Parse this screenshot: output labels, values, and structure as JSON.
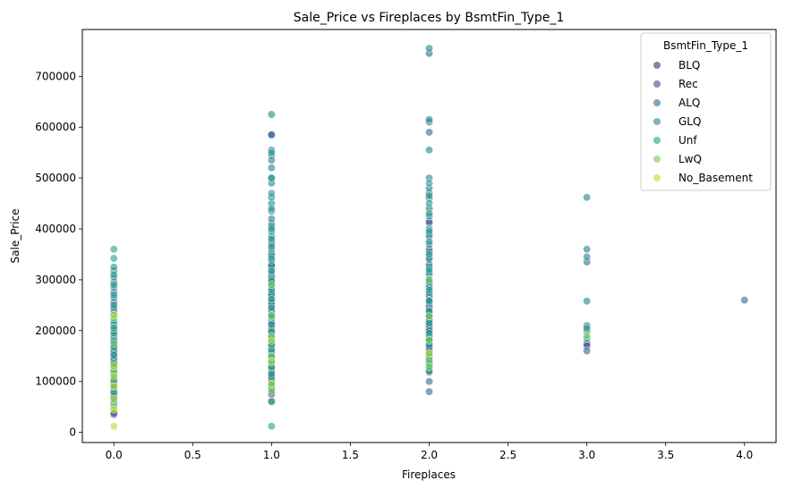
{
  "chart_data": {
    "type": "scatter",
    "title": "Sale_Price vs Fireplaces by BsmtFin_Type_1",
    "xlabel": "Fireplaces",
    "ylabel": "Sale_Price",
    "xlim": [
      -0.2,
      4.2
    ],
    "ylim": [
      -20000,
      792000
    ],
    "x_ticks": [
      0.0,
      0.5,
      1.0,
      1.5,
      2.0,
      2.5,
      3.0,
      3.5,
      4.0
    ],
    "x_tick_labels": [
      "0.0",
      "0.5",
      "1.0",
      "1.5",
      "2.0",
      "2.5",
      "3.0",
      "3.5",
      "4.0"
    ],
    "y_ticks": [
      0,
      100000,
      200000,
      300000,
      400000,
      500000,
      600000,
      700000
    ],
    "y_tick_labels": [
      "0",
      "100000",
      "200000",
      "300000",
      "400000",
      "500000",
      "600000",
      "700000"
    ],
    "grid": false,
    "legend": {
      "title": "BsmtFin_Type_1",
      "placement": "top-right"
    },
    "series": [
      {
        "name": "BLQ",
        "color": "#482878",
        "points": [
          [
            0,
            35000
          ],
          [
            0,
            72000
          ],
          [
            0,
            98000
          ],
          [
            0,
            118000
          ],
          [
            0,
            140000
          ],
          [
            0,
            165000
          ],
          [
            0,
            255000
          ],
          [
            1,
            75000
          ],
          [
            1,
            110000
          ],
          [
            1,
            125000
          ],
          [
            1,
            140000
          ],
          [
            1,
            160000
          ],
          [
            1,
            180000
          ],
          [
            1,
            195000
          ],
          [
            1,
            210000
          ],
          [
            1,
            235000
          ],
          [
            1,
            260000
          ],
          [
            1,
            290000
          ],
          [
            1,
            325000
          ],
          [
            2,
            160000
          ],
          [
            2,
            175000
          ],
          [
            2,
            200000
          ],
          [
            2,
            215000
          ],
          [
            2,
            235000
          ],
          [
            2,
            250000
          ],
          [
            2,
            360000
          ],
          [
            3,
            175000
          ]
        ]
      },
      {
        "name": "Rec",
        "color": "#3e4989",
        "points": [
          [
            0,
            38000
          ],
          [
            0,
            68000
          ],
          [
            0,
            88000
          ],
          [
            0,
            108000
          ],
          [
            0,
            128000
          ],
          [
            0,
            150000
          ],
          [
            0,
            178000
          ],
          [
            0,
            200000
          ],
          [
            0,
            232000
          ],
          [
            1,
            62000
          ],
          [
            1,
            100000
          ],
          [
            1,
            118000
          ],
          [
            1,
            145000
          ],
          [
            1,
            168000
          ],
          [
            1,
            200000
          ],
          [
            1,
            220000
          ],
          [
            1,
            248000
          ],
          [
            1,
            275000
          ],
          [
            1,
            310000
          ],
          [
            1,
            585000
          ],
          [
            2,
            118000
          ],
          [
            2,
            140000
          ],
          [
            2,
            165000
          ],
          [
            2,
            185000
          ],
          [
            2,
            205000
          ],
          [
            2,
            225000
          ],
          [
            2,
            245000
          ],
          [
            2,
            265000
          ],
          [
            2,
            415000
          ],
          [
            3,
            170000
          ]
        ]
      },
      {
        "name": "ALQ",
        "color": "#31688e",
        "points": [
          [
            0,
            55000
          ],
          [
            0,
            80000
          ],
          [
            0,
            95000
          ],
          [
            0,
            112000
          ],
          [
            0,
            132000
          ],
          [
            0,
            155000
          ],
          [
            0,
            172000
          ],
          [
            0,
            190000
          ],
          [
            0,
            210000
          ],
          [
            0,
            240000
          ],
          [
            0,
            275000
          ],
          [
            0,
            295000
          ],
          [
            1,
            90000
          ],
          [
            1,
            105000
          ],
          [
            1,
            130000
          ],
          [
            1,
            150000
          ],
          [
            1,
            175000
          ],
          [
            1,
            190000
          ],
          [
            1,
            215000
          ],
          [
            1,
            230000
          ],
          [
            1,
            250000
          ],
          [
            1,
            268000
          ],
          [
            1,
            300000
          ],
          [
            1,
            330000
          ],
          [
            1,
            352000
          ],
          [
            1,
            375000
          ],
          [
            1,
            410000
          ],
          [
            1,
            500000
          ],
          [
            1,
            545000
          ],
          [
            1,
            585000
          ],
          [
            2,
            80000
          ],
          [
            2,
            100000
          ],
          [
            2,
            122000
          ],
          [
            2,
            145000
          ],
          [
            2,
            168000
          ],
          [
            2,
            190000
          ],
          [
            2,
            210000
          ],
          [
            2,
            230000
          ],
          [
            2,
            255000
          ],
          [
            2,
            270000
          ],
          [
            2,
            290000
          ],
          [
            2,
            310000
          ],
          [
            2,
            325000
          ],
          [
            2,
            345000
          ],
          [
            2,
            390000
          ],
          [
            2,
            412000
          ],
          [
            2,
            440000
          ],
          [
            2,
            470000
          ],
          [
            2,
            590000
          ],
          [
            2,
            745000
          ],
          [
            3,
            160000
          ],
          [
            3,
            200000
          ],
          [
            3,
            335000
          ],
          [
            4,
            260000
          ]
        ]
      },
      {
        "name": "GLQ",
        "color": "#26828e",
        "points": [
          [
            0,
            85000
          ],
          [
            0,
            105000
          ],
          [
            0,
            125000
          ],
          [
            0,
            145000
          ],
          [
            0,
            160000
          ],
          [
            0,
            185000
          ],
          [
            0,
            215000
          ],
          [
            0,
            245000
          ],
          [
            0,
            265000
          ],
          [
            0,
            285000
          ],
          [
            0,
            305000
          ],
          [
            0,
            318000
          ],
          [
            1,
            110000
          ],
          [
            1,
            135000
          ],
          [
            1,
            155000
          ],
          [
            1,
            180000
          ],
          [
            1,
            205000
          ],
          [
            1,
            225000
          ],
          [
            1,
            240000
          ],
          [
            1,
            255000
          ],
          [
            1,
            272000
          ],
          [
            1,
            285000
          ],
          [
            1,
            295000
          ],
          [
            1,
            305000
          ],
          [
            1,
            315000
          ],
          [
            1,
            328000
          ],
          [
            1,
            338000
          ],
          [
            1,
            348000
          ],
          [
            1,
            360000
          ],
          [
            1,
            370000
          ],
          [
            1,
            385000
          ],
          [
            1,
            395000
          ],
          [
            1,
            405000
          ],
          [
            1,
            420000
          ],
          [
            1,
            435000
          ],
          [
            1,
            450000
          ],
          [
            1,
            462000
          ],
          [
            1,
            490000
          ],
          [
            1,
            520000
          ],
          [
            1,
            535000
          ],
          [
            1,
            555000
          ],
          [
            1,
            625000
          ],
          [
            2,
            130000
          ],
          [
            2,
            155000
          ],
          [
            2,
            180000
          ],
          [
            2,
            200000
          ],
          [
            2,
            220000
          ],
          [
            2,
            240000
          ],
          [
            2,
            260000
          ],
          [
            2,
            275000
          ],
          [
            2,
            285000
          ],
          [
            2,
            300000
          ],
          [
            2,
            315000
          ],
          [
            2,
            330000
          ],
          [
            2,
            340000
          ],
          [
            2,
            355000
          ],
          [
            2,
            370000
          ],
          [
            2,
            385000
          ],
          [
            2,
            400000
          ],
          [
            2,
            425000
          ],
          [
            2,
            460000
          ],
          [
            2,
            480000
          ],
          [
            2,
            500000
          ],
          [
            2,
            555000
          ],
          [
            2,
            610000
          ],
          [
            2,
            615000
          ],
          [
            2,
            755000
          ],
          [
            3,
            210000
          ],
          [
            3,
            258000
          ],
          [
            3,
            345000
          ],
          [
            3,
            360000
          ],
          [
            3,
            462000
          ]
        ]
      },
      {
        "name": "Unf",
        "color": "#1f9e89",
        "points": [
          [
            0,
            60000
          ],
          [
            0,
            78000
          ],
          [
            0,
            92000
          ],
          [
            0,
            102000
          ],
          [
            0,
            115000
          ],
          [
            0,
            135000
          ],
          [
            0,
            152000
          ],
          [
            0,
            168000
          ],
          [
            0,
            180000
          ],
          [
            0,
            195000
          ],
          [
            0,
            205000
          ],
          [
            0,
            220000
          ],
          [
            0,
            250000
          ],
          [
            0,
            270000
          ],
          [
            0,
            290000
          ],
          [
            0,
            310000
          ],
          [
            0,
            325000
          ],
          [
            0,
            342000
          ],
          [
            0,
            360000
          ],
          [
            1,
            12000
          ],
          [
            1,
            60000
          ],
          [
            1,
            85000
          ],
          [
            1,
            95000
          ],
          [
            1,
            115000
          ],
          [
            1,
            128000
          ],
          [
            1,
            138000
          ],
          [
            1,
            148000
          ],
          [
            1,
            162000
          ],
          [
            1,
            172000
          ],
          [
            1,
            185000
          ],
          [
            1,
            198000
          ],
          [
            1,
            212000
          ],
          [
            1,
            228000
          ],
          [
            1,
            245000
          ],
          [
            1,
            262000
          ],
          [
            1,
            280000
          ],
          [
            1,
            298000
          ],
          [
            1,
            318000
          ],
          [
            1,
            342000
          ],
          [
            1,
            365000
          ],
          [
            1,
            380000
          ],
          [
            1,
            400000
          ],
          [
            1,
            440000
          ],
          [
            1,
            470000
          ],
          [
            1,
            500000
          ],
          [
            1,
            550000
          ],
          [
            2,
            120000
          ],
          [
            2,
            135000
          ],
          [
            2,
            150000
          ],
          [
            2,
            172000
          ],
          [
            2,
            195000
          ],
          [
            2,
            215000
          ],
          [
            2,
            238000
          ],
          [
            2,
            258000
          ],
          [
            2,
            280000
          ],
          [
            2,
            296000
          ],
          [
            2,
            320000
          ],
          [
            2,
            350000
          ],
          [
            2,
            375000
          ],
          [
            2,
            395000
          ],
          [
            2,
            430000
          ],
          [
            2,
            450000
          ],
          [
            2,
            465000
          ],
          [
            2,
            490000
          ],
          [
            3,
            185000
          ],
          [
            3,
            205000
          ]
        ]
      },
      {
        "name": "LwQ",
        "color": "#6ece58",
        "points": [
          [
            0,
            50000
          ],
          [
            0,
            120000
          ],
          [
            0,
            175000
          ],
          [
            0,
            225000
          ],
          [
            1,
            80000
          ],
          [
            1,
            150000
          ],
          [
            1,
            188000
          ],
          [
            1,
            230000
          ],
          [
            1,
            290000
          ],
          [
            2,
            128000
          ],
          [
            2,
            142000
          ],
          [
            2,
            182000
          ],
          [
            2,
            228000
          ],
          [
            2,
            300000
          ],
          [
            3,
            190000
          ]
        ]
      },
      {
        "name": "No_Basement",
        "color": "#b5de2b",
        "points": [
          [
            0,
            12000
          ],
          [
            0,
            45000
          ],
          [
            0,
            65000
          ],
          [
            0,
            90000
          ],
          [
            0,
            110000
          ],
          [
            0,
            130000
          ],
          [
            0,
            230000
          ],
          [
            1,
            95000
          ],
          [
            1,
            140000
          ],
          [
            1,
            180000
          ],
          [
            2,
            155000
          ]
        ]
      }
    ]
  }
}
